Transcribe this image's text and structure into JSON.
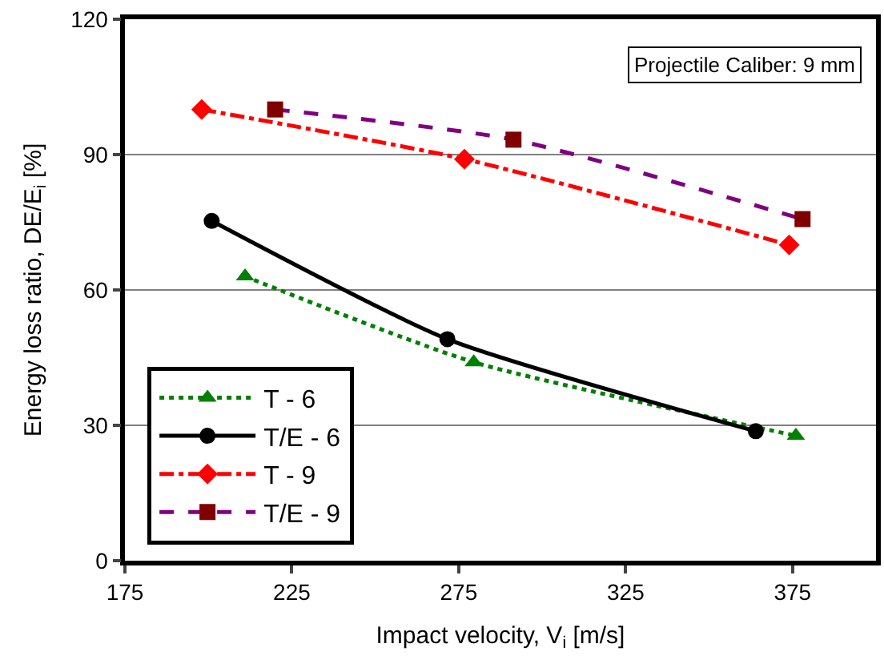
{
  "chart_data": {
    "type": "line",
    "xlabel": "Impact velocity, V$_{i}$ [m/s]",
    "ylabel": "Energy loss ratio, DE/E$_{i}$ [%]",
    "xlim": [
      175,
      400
    ],
    "xticks": [
      175,
      225,
      275,
      325,
      375
    ],
    "ylim": [
      0,
      120
    ],
    "yticks": [
      0,
      30,
      60,
      90,
      120
    ],
    "grid": "y",
    "legend": "bottom left",
    "annotations": [
      "Projectile Caliber: 9 mm"
    ],
    "series": [
      {
        "name": "T - 6",
        "color": "#008000",
        "marker": "triangle",
        "line_style": "dotted",
        "x": [
          211,
          279.5,
          376
        ],
        "values": [
          63,
          44,
          27.7
        ]
      },
      {
        "name": "T/E - 6",
        "color": "#000000",
        "marker": "circle",
        "line_style": "solid",
        "x": [
          201,
          271.6,
          364
        ],
        "values": [
          75.3,
          49.1,
          28.7
        ]
      },
      {
        "name": "T - 9",
        "color": "#ff0000",
        "marker": "diamond",
        "line_style": "dashdot",
        "x": [
          198,
          276.7,
          374
        ],
        "values": [
          100,
          89,
          70
        ]
      },
      {
        "name": "T/E - 9",
        "color": "#800080",
        "colors": [
          "#800000",
          "#800000",
          "#800000"
        ],
        "marker": "square",
        "line_style": "dashed",
        "x": [
          220,
          291.4,
          378
        ],
        "values": [
          100,
          93.3,
          75.7
        ]
      }
    ]
  }
}
